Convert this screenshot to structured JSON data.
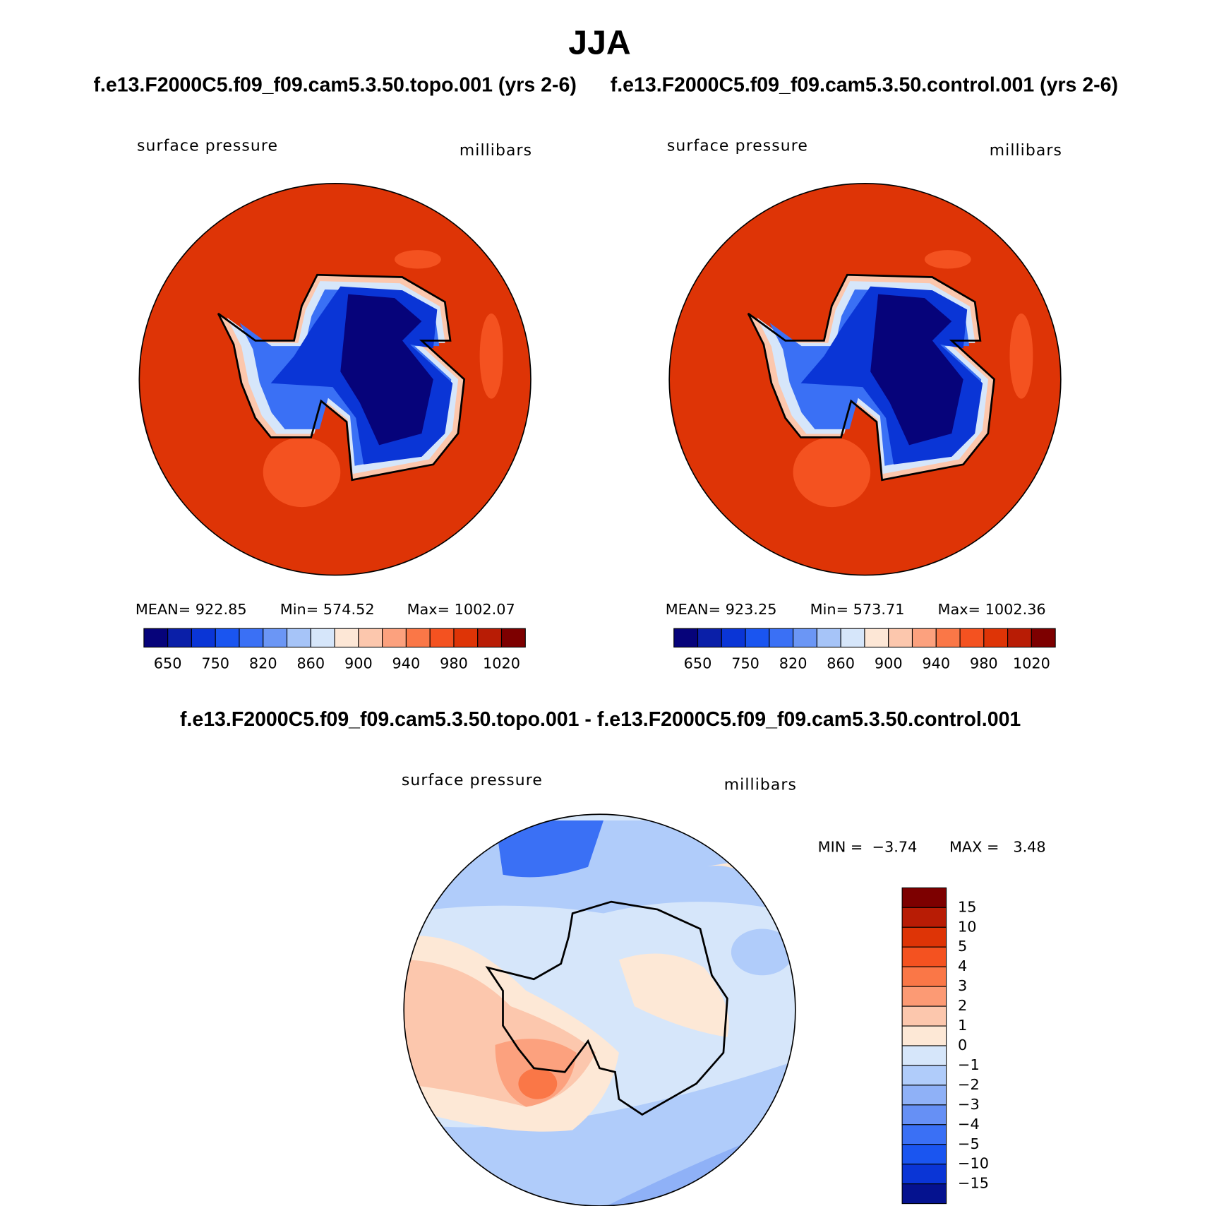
{
  "title": "JJA",
  "panels": [
    {
      "title": "f.e13.F2000C5.f09_f09.cam5.3.50.topo.001 (yrs 2-6)",
      "variable": "surface pressure",
      "units": "millibars",
      "stats": [
        "MEAN= 922.85",
        "Min= 574.52",
        "Max= 1002.07"
      ],
      "colorbar": {
        "colors": [
          "#06037a",
          "#0a1fa8",
          "#0a35d6",
          "#1a55f0",
          "#3a70f5",
          "#6b96f5",
          "#a6c4f8",
          "#d6e6fa",
          "#fde7d6",
          "#fcc7ad",
          "#fca17e",
          "#fa7747",
          "#f45220",
          "#de3406",
          "#b81c05",
          "#7d0000"
        ],
        "labels": [
          "650",
          "750",
          "820",
          "860",
          "900",
          "940",
          "980",
          "1020"
        ]
      }
    },
    {
      "title": "f.e13.F2000C5.f09_f09.cam5.3.50.control.001 (yrs 2-6)",
      "variable": "surface pressure",
      "units": "millibars",
      "stats": [
        "MEAN= 923.25",
        "Min= 573.71",
        "Max= 1002.36"
      ],
      "colorbar": {
        "colors": [
          "#06037a",
          "#0a1fa8",
          "#0a35d6",
          "#1a55f0",
          "#3a70f5",
          "#6b96f5",
          "#a6c4f8",
          "#d6e6fa",
          "#fde7d6",
          "#fcc7ad",
          "#fca17e",
          "#fa7747",
          "#f45220",
          "#de3406",
          "#b81c05",
          "#7d0000"
        ],
        "labels": [
          "650",
          "750",
          "820",
          "860",
          "900",
          "940",
          "980",
          "1020"
        ]
      }
    }
  ],
  "difference": {
    "title": "f.e13.F2000C5.f09_f09.cam5.3.50.topo.001 - f.e13.F2000C5.f09_f09.cam5.3.50.control.001",
    "variable": "surface pressure",
    "units": "millibars",
    "stats": [
      "MIN =  −3.74",
      "MAX =   3.48"
    ],
    "colorbar": {
      "colors": [
        "#7d0000",
        "#b81c05",
        "#de3406",
        "#f45220",
        "#fa7747",
        "#fc9a74",
        "#fcc7ad",
        "#fde8d6",
        "#d6e6fa",
        "#b0ccfa",
        "#8fb1f7",
        "#6690f5",
        "#3a70f5",
        "#1a55f0",
        "#0a35d6",
        "#05128f"
      ],
      "labels": [
        "15",
        "10",
        "5",
        "4",
        "3",
        "2",
        "1",
        "0",
        "−1",
        "−2",
        "−3",
        "−4",
        "−5",
        "−10",
        "−15"
      ]
    }
  }
}
